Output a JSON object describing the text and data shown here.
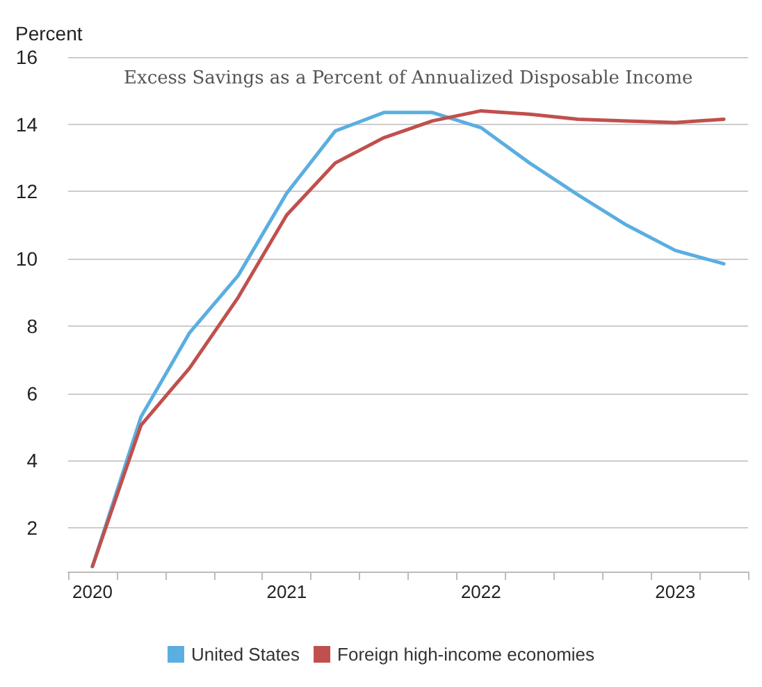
{
  "chart_data": {
    "type": "line",
    "title": "Excess Savings as a Percent of Annualized Disposable Income",
    "ylabel": "Percent",
    "categories": [
      "2020",
      null,
      null,
      null,
      "2021",
      null,
      null,
      null,
      "2022",
      null,
      null,
      null,
      "2023",
      null
    ],
    "series": [
      {
        "name": "United States",
        "color": "#5aaee0",
        "values": [
          0.85,
          5.3,
          7.8,
          9.5,
          11.95,
          13.8,
          14.35,
          14.35,
          13.9,
          12.85,
          11.9,
          11.0,
          10.25,
          9.85
        ]
      },
      {
        "name": "Foreign high-income economies",
        "color": "#c0504d",
        "values": [
          0.85,
          5.05,
          6.75,
          8.85,
          11.3,
          12.85,
          13.6,
          14.1,
          14.4,
          14.3,
          14.15,
          14.1,
          14.05,
          14.15
        ]
      }
    ],
    "ylim": [
      0.7,
      16
    ],
    "yticks": [
      2,
      4,
      6,
      8,
      10,
      12,
      14,
      16
    ],
    "grid": "y",
    "legend": "bottom",
    "marker": "none",
    "line_style": "solid"
  }
}
